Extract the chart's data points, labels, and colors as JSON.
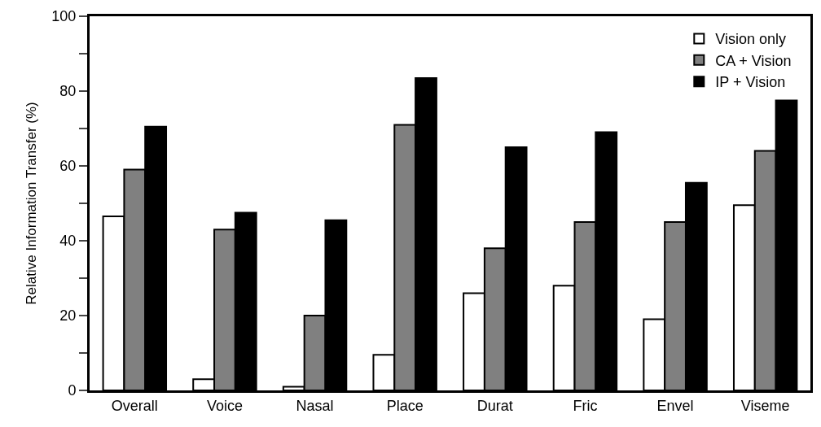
{
  "chart_data": {
    "type": "bar",
    "ylabel": "Relative Information Transfer (%)",
    "categories": [
      "Overall",
      "Voice",
      "Nasal",
      "Place",
      "Durat",
      "Fric",
      "Envel",
      "Viseme"
    ],
    "series": [
      {
        "name": "Vision only",
        "color": "#ffffff",
        "values": [
          46.5,
          3,
          1,
          9.5,
          26,
          28,
          19,
          49.5
        ]
      },
      {
        "name": "CA + Vision",
        "color": "#808080",
        "values": [
          59,
          43,
          20,
          71,
          38,
          45,
          45,
          64
        ]
      },
      {
        "name": "IP + Vision",
        "color": "#000000",
        "values": [
          70.5,
          47.5,
          45.5,
          83.5,
          65,
          69,
          55.5,
          77.5
        ]
      }
    ],
    "ylim": [
      0,
      100
    ],
    "yticks": [
      0,
      {
        "value": 10,
        "label": null
      },
      20,
      {
        "value": 30,
        "label": null
      },
      40,
      {
        "value": 50,
        "label": null
      },
      60,
      {
        "value": 70,
        "label": null
      },
      80,
      {
        "value": 90,
        "label": null
      },
      100
    ],
    "legend": "top right"
  }
}
